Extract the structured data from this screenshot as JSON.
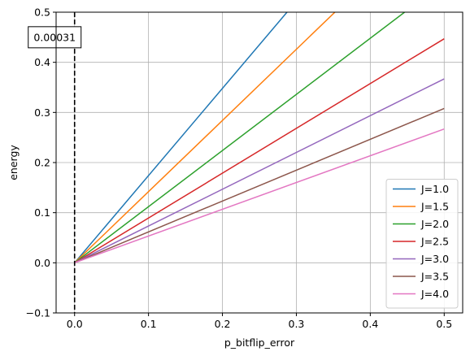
{
  "chart_data": {
    "type": "line",
    "xlabel": "p_bitflip_error",
    "ylabel": "energy",
    "xlim": [
      -0.025,
      0.525
    ],
    "ylim": [
      -0.1,
      0.5
    ],
    "x_ticks": [
      0.0,
      0.1,
      0.2,
      0.3,
      0.4,
      0.5
    ],
    "y_ticks": [
      -0.1,
      0.0,
      0.1,
      0.2,
      0.3,
      0.4,
      0.5
    ],
    "x_tick_labels": [
      "0.0",
      "0.1",
      "0.2",
      "0.3",
      "0.4",
      "0.5"
    ],
    "y_tick_labels": [
      "−0.1",
      "0.0",
      "0.1",
      "0.2",
      "0.3",
      "0.4",
      "0.5"
    ],
    "grid": true,
    "legend_position": "lower-right",
    "vline": {
      "x": 0.0,
      "style": "dashed",
      "color": "#000000"
    },
    "annotation": {
      "text": "0.00031",
      "x": 0.0,
      "y": 0.45
    },
    "series": [
      {
        "name": "J=1.0",
        "color": "#1f77b4",
        "x": [
          0,
          0.5
        ],
        "y": [
          0,
          0.87
        ]
      },
      {
        "name": "J=1.5",
        "color": "#ff7f0e",
        "x": [
          0,
          0.5
        ],
        "y": [
          0,
          0.71
        ]
      },
      {
        "name": "J=2.0",
        "color": "#2ca02c",
        "x": [
          0,
          0.5
        ],
        "y": [
          0,
          0.56
        ]
      },
      {
        "name": "J=2.5",
        "color": "#d62728",
        "x": [
          0,
          0.5
        ],
        "y": [
          0,
          0.447
        ]
      },
      {
        "name": "J=3.0",
        "color": "#9467bd",
        "x": [
          0,
          0.5
        ],
        "y": [
          0,
          0.367
        ]
      },
      {
        "name": "J=3.5",
        "color": "#8c564b",
        "x": [
          0,
          0.5
        ],
        "y": [
          0,
          0.308
        ]
      },
      {
        "name": "J=4.0",
        "color": "#e377c2",
        "x": [
          0,
          0.5
        ],
        "y": [
          0,
          0.267
        ]
      }
    ]
  }
}
